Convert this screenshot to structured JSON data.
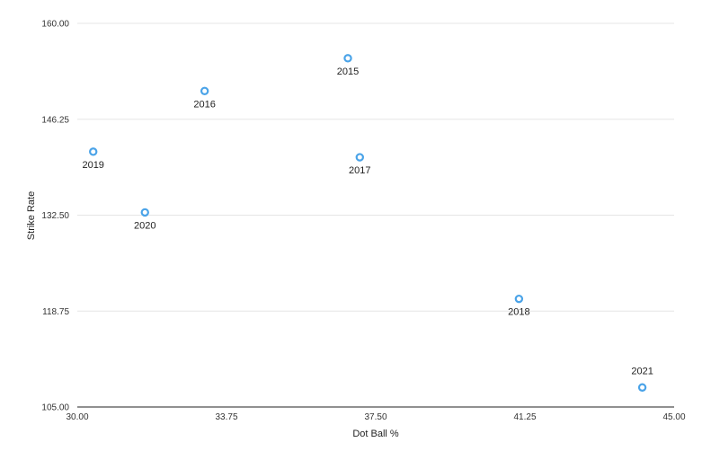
{
  "chart_data": {
    "type": "scatter",
    "title": "",
    "xlabel": "Dot Ball %",
    "ylabel": "Strike Rate",
    "xlim": [
      30.0,
      45.0
    ],
    "ylim": [
      105.0,
      160.0
    ],
    "x_ticks": [
      "30.00",
      "33.75",
      "37.50",
      "41.25",
      "45.00"
    ],
    "y_ticks": [
      "105.00",
      "118.75",
      "132.50",
      "146.25",
      "160.00"
    ],
    "x_tick_values": [
      30.0,
      33.75,
      37.5,
      41.25,
      45.0
    ],
    "y_tick_values": [
      105.0,
      118.75,
      132.5,
      146.25,
      160.0
    ],
    "grid": true,
    "series": [
      {
        "color": "#4aa3e8",
        "points": [
          {
            "label": "2015",
            "x": 36.8,
            "y": 155.0,
            "label_position": "below"
          },
          {
            "label": "2016",
            "x": 33.2,
            "y": 150.3,
            "label_position": "below"
          },
          {
            "label": "2017",
            "x": 37.1,
            "y": 140.8,
            "label_position": "below"
          },
          {
            "label": "2018",
            "x": 41.1,
            "y": 120.5,
            "label_position": "below"
          },
          {
            "label": "2019",
            "x": 30.4,
            "y": 141.6,
            "label_position": "below"
          },
          {
            "label": "2020",
            "x": 31.7,
            "y": 132.9,
            "label_position": "below"
          },
          {
            "label": "2021",
            "x": 44.2,
            "y": 107.8,
            "label_position": "above"
          }
        ]
      }
    ]
  }
}
